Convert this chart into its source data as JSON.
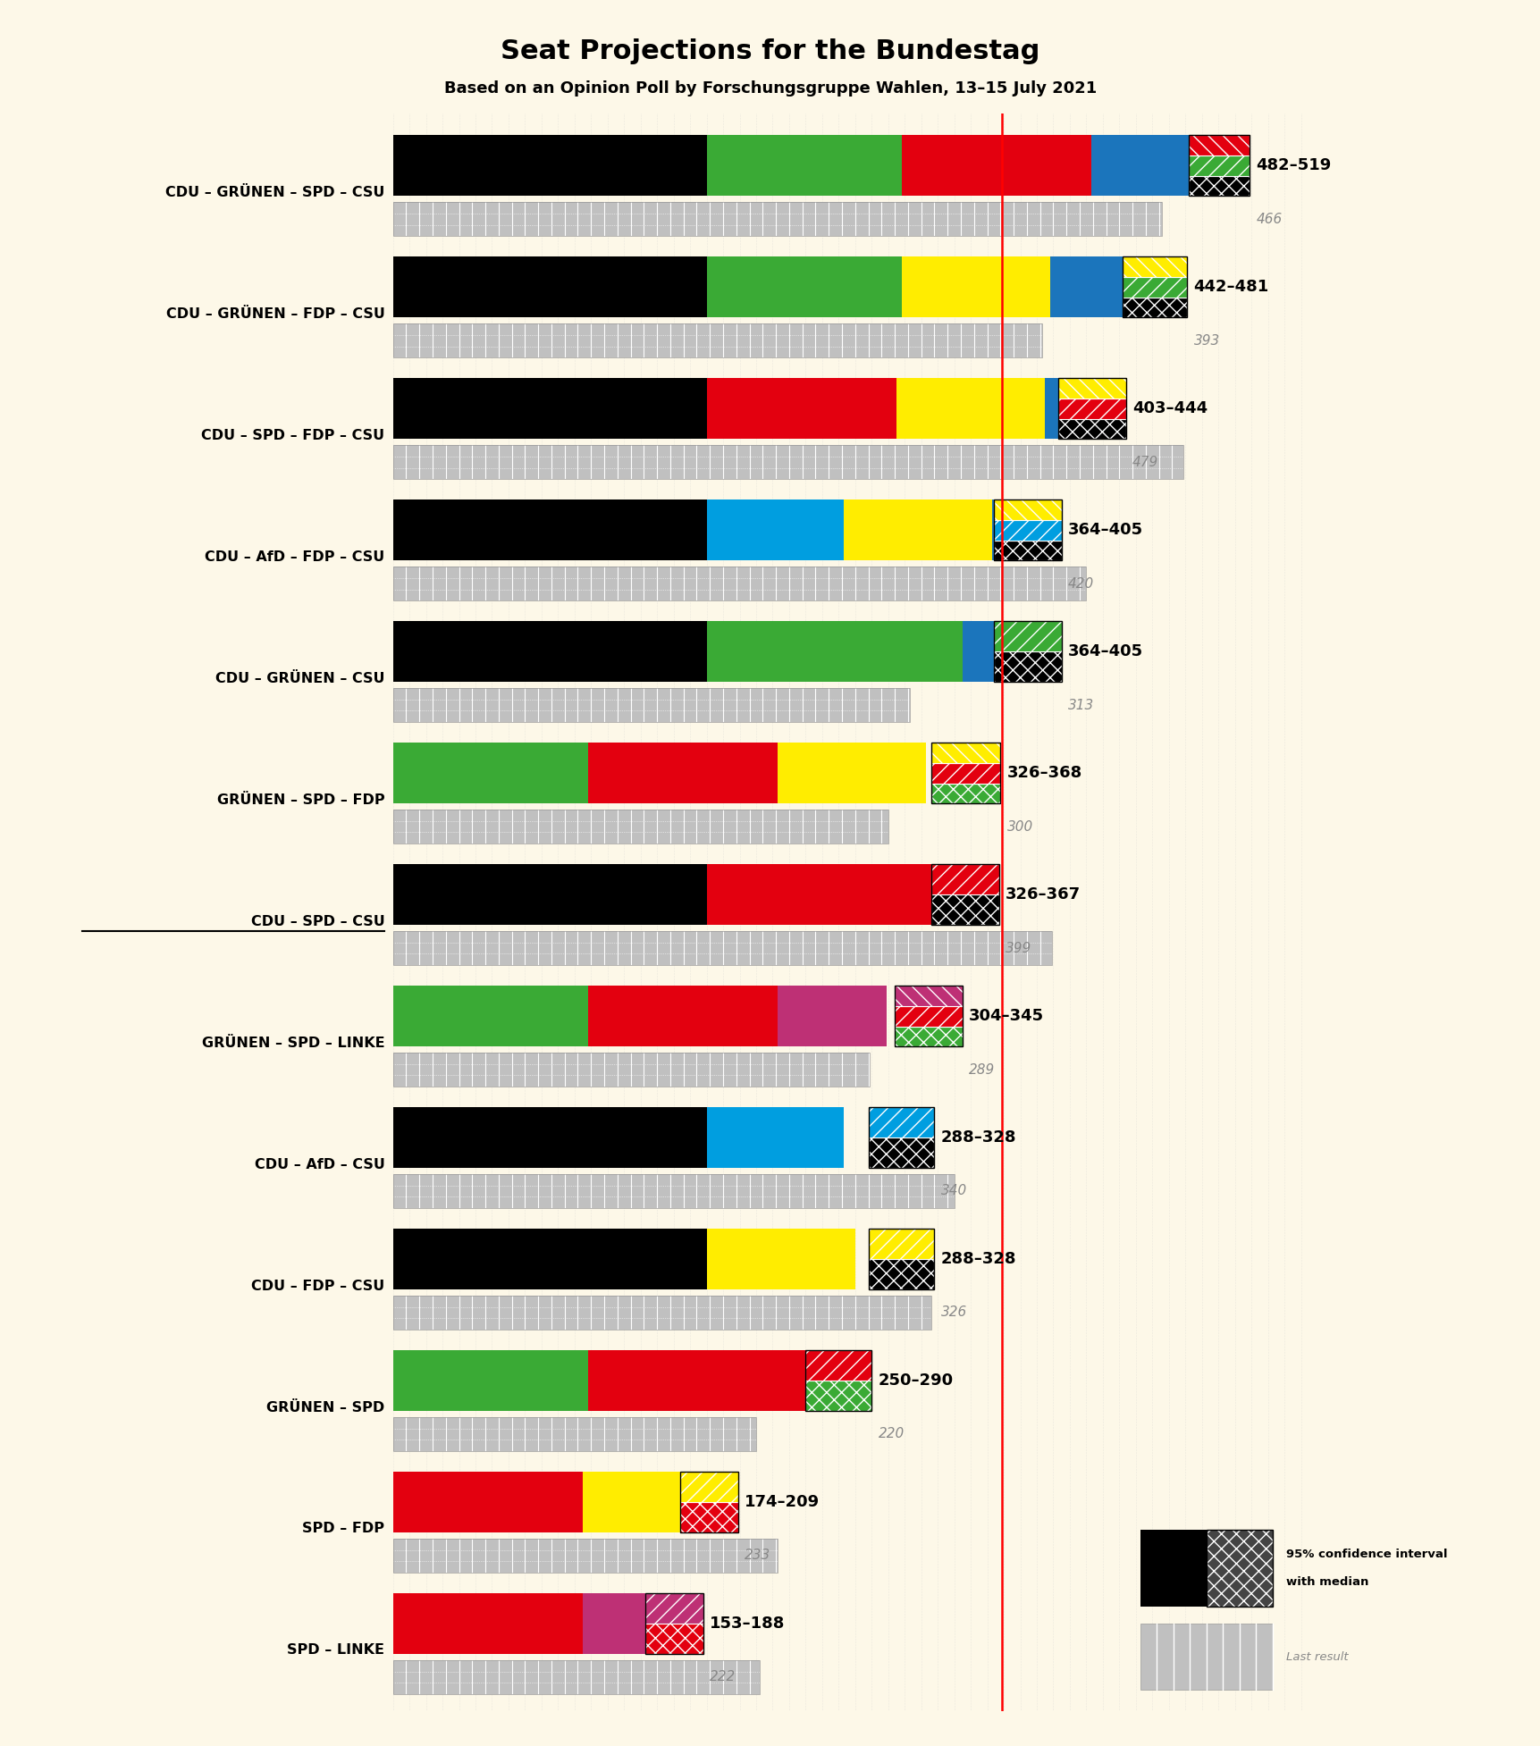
{
  "title": "Seat Projections for the Bundestag",
  "subtitle": "Based on an Opinion Poll by Forschungsgruppe Wahlen, 13–15 July 2021",
  "bg": "#fdf8e8",
  "majority": 369,
  "coalitions": [
    {
      "name": "CDU – GRÜNEN – SPD – CSU",
      "underline": false,
      "segs": [
        [
          190,
          "#000000"
        ],
        [
          118,
          "#3aaa35"
        ],
        [
          115,
          "#e3000f"
        ],
        [
          59,
          "#1b75bc"
        ]
      ],
      "ci_lo": 482,
      "ci_hi": 519,
      "ci_colors": [
        "#000000",
        "#3aaa35",
        "#e3000f"
      ],
      "lr": 466
    },
    {
      "name": "CDU – GRÜNEN – FDP – CSU",
      "underline": false,
      "segs": [
        [
          190,
          "#000000"
        ],
        [
          118,
          "#3aaa35"
        ],
        [
          90,
          "#ffed00"
        ],
        [
          44,
          "#1b75bc"
        ]
      ],
      "ci_lo": 442,
      "ci_hi": 481,
      "ci_colors": [
        "#000000",
        "#3aaa35",
        "#ffed00"
      ],
      "lr": 393
    },
    {
      "name": "CDU – SPD – FDP – CSU",
      "underline": false,
      "segs": [
        [
          190,
          "#000000"
        ],
        [
          115,
          "#e3000f"
        ],
        [
          90,
          "#ffed00"
        ],
        [
          9,
          "#1b75bc"
        ]
      ],
      "ci_lo": 403,
      "ci_hi": 444,
      "ci_colors": [
        "#000000",
        "#e3000f",
        "#ffed00"
      ],
      "lr": 479
    },
    {
      "name": "CDU – AfD – FDP – CSU",
      "underline": false,
      "segs": [
        [
          190,
          "#000000"
        ],
        [
          83,
          "#009ee0"
        ],
        [
          90,
          "#ffed00"
        ],
        [
          1,
          "#1b75bc"
        ]
      ],
      "ci_lo": 364,
      "ci_hi": 405,
      "ci_colors": [
        "#000000",
        "#009ee0",
        "#ffed00"
      ],
      "lr": 420
    },
    {
      "name": "CDU – GRÜNEN – CSU",
      "underline": false,
      "segs": [
        [
          190,
          "#000000"
        ],
        [
          155,
          "#3aaa35"
        ],
        [
          19,
          "#1b75bc"
        ]
      ],
      "ci_lo": 364,
      "ci_hi": 405,
      "ci_colors": [
        "#000000",
        "#3aaa35"
      ],
      "lr": 313
    },
    {
      "name": "GRÜNEN – SPD – FDP",
      "underline": false,
      "segs": [
        [
          118,
          "#3aaa35"
        ],
        [
          115,
          "#e3000f"
        ],
        [
          90,
          "#ffed00"
        ]
      ],
      "ci_lo": 326,
      "ci_hi": 368,
      "ci_colors": [
        "#3aaa35",
        "#e3000f",
        "#ffed00"
      ],
      "lr": 300
    },
    {
      "name": "CDU – SPD – CSU",
      "underline": true,
      "segs": [
        [
          190,
          "#000000"
        ],
        [
          136,
          "#e3000f"
        ]
      ],
      "ci_lo": 326,
      "ci_hi": 367,
      "ci_colors": [
        "#000000",
        "#e3000f"
      ],
      "lr": 399
    },
    {
      "name": "GRÜNEN – SPD – LINKE",
      "underline": false,
      "segs": [
        [
          118,
          "#3aaa35"
        ],
        [
          115,
          "#e3000f"
        ],
        [
          66,
          "#be3075"
        ]
      ],
      "ci_lo": 304,
      "ci_hi": 345,
      "ci_colors": [
        "#3aaa35",
        "#e3000f",
        "#be3075"
      ],
      "lr": 289
    },
    {
      "name": "CDU – AfD – CSU",
      "underline": false,
      "segs": [
        [
          190,
          "#000000"
        ],
        [
          83,
          "#009ee0"
        ]
      ],
      "ci_lo": 288,
      "ci_hi": 328,
      "ci_colors": [
        "#000000",
        "#009ee0"
      ],
      "lr": 340
    },
    {
      "name": "CDU – FDP – CSU",
      "underline": false,
      "segs": [
        [
          190,
          "#000000"
        ],
        [
          90,
          "#ffed00"
        ]
      ],
      "ci_lo": 288,
      "ci_hi": 328,
      "ci_colors": [
        "#000000",
        "#ffed00"
      ],
      "lr": 326
    },
    {
      "name": "GRÜNEN – SPD",
      "underline": false,
      "segs": [
        [
          118,
          "#3aaa35"
        ],
        [
          152,
          "#e3000f"
        ]
      ],
      "ci_lo": 250,
      "ci_hi": 290,
      "ci_colors": [
        "#3aaa35",
        "#e3000f"
      ],
      "lr": 220
    },
    {
      "name": "SPD – FDP",
      "underline": false,
      "segs": [
        [
          115,
          "#e3000f"
        ],
        [
          74,
          "#ffed00"
        ]
      ],
      "ci_lo": 174,
      "ci_hi": 209,
      "ci_colors": [
        "#e3000f",
        "#ffed00"
      ],
      "lr": 233
    },
    {
      "name": "SPD – LINKE",
      "underline": false,
      "segs": [
        [
          115,
          "#e3000f"
        ],
        [
          53,
          "#be3075"
        ]
      ],
      "ci_lo": 153,
      "ci_hi": 188,
      "ci_colors": [
        "#e3000f",
        "#be3075"
      ],
      "lr": 222
    }
  ]
}
